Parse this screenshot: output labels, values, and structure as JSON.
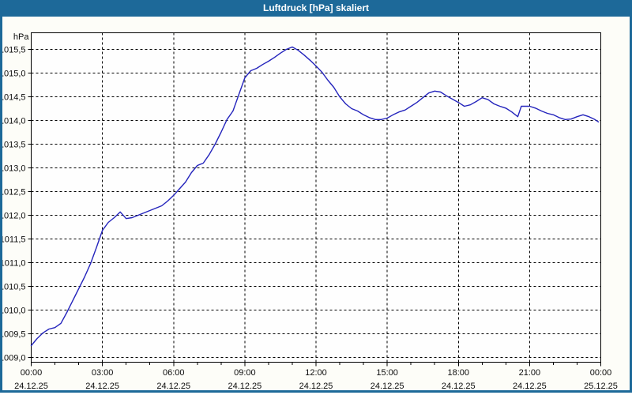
{
  "window": {
    "title": "Luftdruck [hPa] skaliert"
  },
  "colors": {
    "frame": "#1d6999",
    "titlebar": "#1d6999",
    "title_text": "#ffffff",
    "content_bg": "#fdfdf8",
    "plot_bg": "#fefefe",
    "grid": "#000000",
    "axis": "#000000",
    "tick_text": "#0b0b0b",
    "line": "#2424bc"
  },
  "chart_data": {
    "type": "line",
    "title": "Luftdruck [hPa] skaliert",
    "ylabel": "hPa",
    "xlabel": "",
    "grid": "dashed",
    "legend": "none",
    "ylim": [
      1008.9,
      1015.85
    ],
    "xlim_hours": [
      0,
      24
    ],
    "x_major_every_h": 3,
    "x_minor_every_h": 1,
    "y_ticks": [
      {
        "v": 1009.0,
        "label": "1009,0"
      },
      {
        "v": 1009.5,
        "label": "1009,5"
      },
      {
        "v": 1010.0,
        "label": "1010,0"
      },
      {
        "v": 1010.5,
        "label": "1010,5"
      },
      {
        "v": 1011.0,
        "label": "1011,0"
      },
      {
        "v": 1011.5,
        "label": "1011,5"
      },
      {
        "v": 1012.0,
        "label": "1012,0"
      },
      {
        "v": 1012.5,
        "label": "1012,5"
      },
      {
        "v": 1013.0,
        "label": "1013,0"
      },
      {
        "v": 1013.5,
        "label": "1013,5"
      },
      {
        "v": 1014.0,
        "label": "1014,0"
      },
      {
        "v": 1014.5,
        "label": "1014,5"
      },
      {
        "v": 1015.0,
        "label": "1015,0"
      },
      {
        "v": 1015.5,
        "label": "1015,5"
      }
    ],
    "x_ticks": [
      {
        "h": 0,
        "time": "00:00",
        "date": "24.12.25"
      },
      {
        "h": 3,
        "time": "03:00",
        "date": "24.12.25"
      },
      {
        "h": 6,
        "time": "06:00",
        "date": "24.12.25"
      },
      {
        "h": 9,
        "time": "09:00",
        "date": "24.12.25"
      },
      {
        "h": 12,
        "time": "12:00",
        "date": "24.12.25"
      },
      {
        "h": 15,
        "time": "15:00",
        "date": "24.12.25"
      },
      {
        "h": 18,
        "time": "18:00",
        "date": "24.12.25"
      },
      {
        "h": 21,
        "time": "21:00",
        "date": "24.12.25"
      },
      {
        "h": 24,
        "time": "00:00",
        "date": "25.12.25"
      }
    ],
    "series": [
      {
        "name": "Luftdruck",
        "unit": "hPa",
        "points": [
          [
            0.0,
            1009.25
          ],
          [
            0.25,
            1009.4
          ],
          [
            0.5,
            1009.52
          ],
          [
            0.75,
            1009.6
          ],
          [
            1.0,
            1009.63
          ],
          [
            1.25,
            1009.72
          ],
          [
            1.5,
            1009.95
          ],
          [
            1.75,
            1010.2
          ],
          [
            2.0,
            1010.45
          ],
          [
            2.25,
            1010.7
          ],
          [
            2.5,
            1010.98
          ],
          [
            2.75,
            1011.32
          ],
          [
            3.0,
            1011.68
          ],
          [
            3.25,
            1011.85
          ],
          [
            3.5,
            1011.95
          ],
          [
            3.75,
            1012.07
          ],
          [
            4.0,
            1011.93
          ],
          [
            4.25,
            1011.95
          ],
          [
            4.5,
            1012.0
          ],
          [
            4.75,
            1012.05
          ],
          [
            5.0,
            1012.1
          ],
          [
            5.25,
            1012.15
          ],
          [
            5.5,
            1012.2
          ],
          [
            5.75,
            1012.3
          ],
          [
            6.0,
            1012.42
          ],
          [
            6.25,
            1012.56
          ],
          [
            6.5,
            1012.7
          ],
          [
            6.75,
            1012.9
          ],
          [
            7.0,
            1013.05
          ],
          [
            7.25,
            1013.1
          ],
          [
            7.5,
            1013.28
          ],
          [
            7.75,
            1013.5
          ],
          [
            8.0,
            1013.75
          ],
          [
            8.25,
            1014.02
          ],
          [
            8.5,
            1014.2
          ],
          [
            8.75,
            1014.55
          ],
          [
            9.0,
            1014.9
          ],
          [
            9.25,
            1015.05
          ],
          [
            9.5,
            1015.1
          ],
          [
            9.75,
            1015.18
          ],
          [
            10.0,
            1015.25
          ],
          [
            10.25,
            1015.33
          ],
          [
            10.5,
            1015.42
          ],
          [
            10.75,
            1015.5
          ],
          [
            11.0,
            1015.55
          ],
          [
            11.25,
            1015.48
          ],
          [
            11.5,
            1015.38
          ],
          [
            11.75,
            1015.27
          ],
          [
            12.0,
            1015.15
          ],
          [
            12.25,
            1015.02
          ],
          [
            12.5,
            1014.85
          ],
          [
            12.75,
            1014.7
          ],
          [
            13.0,
            1014.5
          ],
          [
            13.25,
            1014.35
          ],
          [
            13.5,
            1014.25
          ],
          [
            13.75,
            1014.2
          ],
          [
            14.0,
            1014.12
          ],
          [
            14.25,
            1014.06
          ],
          [
            14.5,
            1014.02
          ],
          [
            14.75,
            1014.02
          ],
          [
            15.0,
            1014.05
          ],
          [
            15.25,
            1014.12
          ],
          [
            15.5,
            1014.18
          ],
          [
            15.75,
            1014.22
          ],
          [
            16.0,
            1014.3
          ],
          [
            16.25,
            1014.38
          ],
          [
            16.5,
            1014.48
          ],
          [
            16.75,
            1014.58
          ],
          [
            17.0,
            1014.62
          ],
          [
            17.25,
            1014.6
          ],
          [
            17.5,
            1014.52
          ],
          [
            17.75,
            1014.45
          ],
          [
            18.0,
            1014.38
          ],
          [
            18.25,
            1014.3
          ],
          [
            18.5,
            1014.33
          ],
          [
            18.75,
            1014.4
          ],
          [
            19.0,
            1014.48
          ],
          [
            19.25,
            1014.44
          ],
          [
            19.5,
            1014.35
          ],
          [
            19.75,
            1014.3
          ],
          [
            20.0,
            1014.26
          ],
          [
            20.25,
            1014.18
          ],
          [
            20.5,
            1014.08
          ],
          [
            20.65,
            1014.3
          ],
          [
            21.0,
            1014.3
          ],
          [
            21.25,
            1014.26
          ],
          [
            21.5,
            1014.2
          ],
          [
            21.75,
            1014.15
          ],
          [
            22.0,
            1014.12
          ],
          [
            22.25,
            1014.06
          ],
          [
            22.5,
            1014.02
          ],
          [
            22.75,
            1014.03
          ],
          [
            23.0,
            1014.08
          ],
          [
            23.25,
            1014.12
          ],
          [
            23.5,
            1014.08
          ],
          [
            23.75,
            1014.02
          ],
          [
            23.9,
            1013.97
          ]
        ]
      }
    ]
  }
}
